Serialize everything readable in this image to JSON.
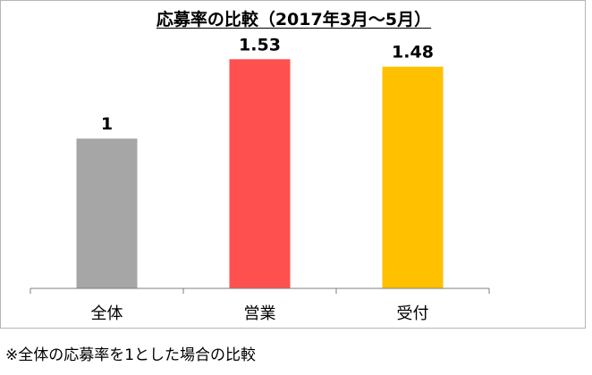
{
  "chart_data": {
    "type": "bar",
    "title": "応募率の比較（2017年3月～5月）",
    "categories": [
      "全体",
      "営業",
      "受付"
    ],
    "values": [
      1,
      1.53,
      1.48
    ],
    "value_labels": [
      "1",
      "1.53",
      "1.48"
    ],
    "colors": [
      "#a6a6a6",
      "#ff5050",
      "#ffc000"
    ],
    "ylim": [
      0,
      1.8
    ],
    "xlabel": "",
    "ylabel": "",
    "grid": false,
    "legend": "none"
  },
  "footnote": "※全体の応募率を1とした場合の比較"
}
